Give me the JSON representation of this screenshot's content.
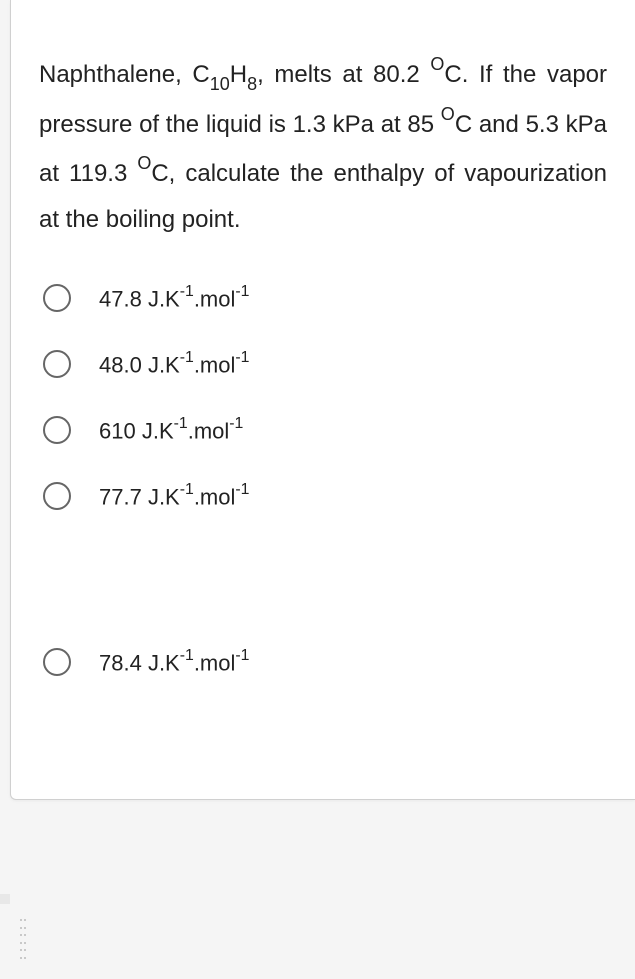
{
  "question": {
    "prefix": "Naphthalene, C",
    "sub1": "10",
    "mid1": "H",
    "sub2": "8",
    "part2": ", melts at 80.2 ",
    "sup1": "O",
    "part3": "C. If the vapor pressure of the liquid is 1.3 kPa at 85 ",
    "sup2": "O",
    "part4": "C and 5.3 kPa at 119.3 ",
    "sup3": "O",
    "part5": "C, calculate the enthalpy of vapourization at the boiling point."
  },
  "options": [
    {
      "value": "47.8",
      "unit_prefix": " J.K",
      "sup1": "-1",
      "unit_mid": ".mol",
      "sup2": "-1"
    },
    {
      "value": "48.0",
      "unit_prefix": " J.K",
      "sup1": "-1",
      "unit_mid": ".mol",
      "sup2": "-1"
    },
    {
      "value": "610",
      "unit_prefix": " J.K",
      "sup1": "-1",
      "unit_mid": ".mol",
      "sup2": "-1"
    },
    {
      "value": "77.7",
      "unit_prefix": " J.K",
      "sup1": "-1",
      "unit_mid": ".mol",
      "sup2": "-1"
    },
    {
      "value": "78.4",
      "unit_prefix": " J.K",
      "sup1": "-1",
      "unit_mid": ".mol",
      "sup2": "-1"
    }
  ],
  "colors": {
    "text": "#222222",
    "radio_border": "#666666",
    "card_bg": "#ffffff",
    "page_bg": "#f5f5f5"
  }
}
